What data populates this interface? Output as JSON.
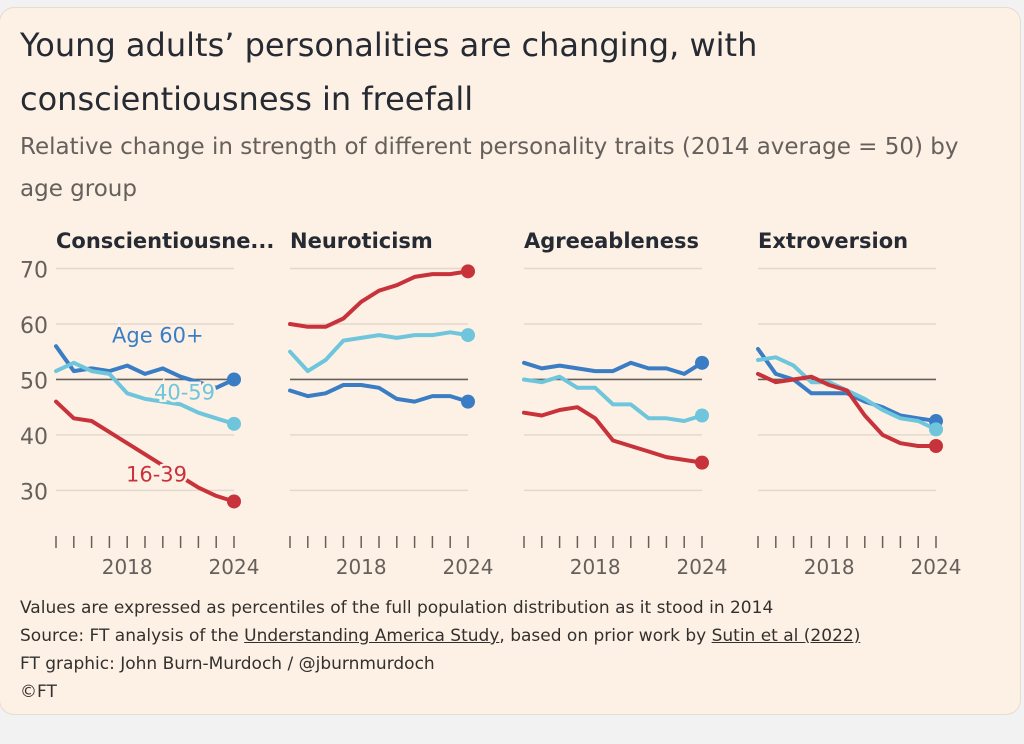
{
  "title": "Young adults’ personalities are changing, with conscientiousness in freefall",
  "subtitle": "Relative change in strength of different personality traits (2014 average = 50) by age group",
  "footer": {
    "note": "Values are expressed as percentiles of the full population distribution as it stood in 2014",
    "source_prefix": "Source: FT analysis of the ",
    "source_link1": "Understanding America Study",
    "source_middle": ", based on prior work by ",
    "source_link2": "Sutin et al (2022)",
    "credit": "FT graphic: John Burn-Murdoch / @jburnmurdoch",
    "copyright": "©FT"
  },
  "chart_data": {
    "type": "line",
    "x": [
      2014,
      2015,
      2016,
      2017,
      2018,
      2019,
      2020,
      2021,
      2022,
      2023,
      2024
    ],
    "x_tick_labels": [
      "2018",
      "2024"
    ],
    "x_tick_values": [
      2018,
      2024
    ],
    "ylim": [
      27,
      71
    ],
    "y_ticks": [
      30,
      40,
      50,
      60,
      70
    ],
    "reference_line": 50,
    "colors": {
      "Age 60+": "#3a7dc4",
      "40-59": "#6fc6dc",
      "16-39": "#c8323a"
    },
    "panels": [
      {
        "name": "Conscientiousne...",
        "series": [
          {
            "name": "Age 60+",
            "values": [
              56,
              51.5,
              52,
              51.5,
              52.5,
              51,
              52,
              50.5,
              49.5,
              48.5,
              50
            ],
            "label": "Age 60+"
          },
          {
            "name": "40-59",
            "values": [
              51.5,
              53,
              51.5,
              51,
              47.5,
              46.5,
              46,
              45.5,
              44,
              43,
              42
            ],
            "label": "40-59"
          },
          {
            "name": "16-39",
            "values": [
              46,
              43,
              42.5,
              40.5,
              38.5,
              36.5,
              34.5,
              32.5,
              30.5,
              29,
              28
            ],
            "label": "16-39"
          }
        ]
      },
      {
        "name": "Neuroticism",
        "series": [
          {
            "name": "Age 60+",
            "values": [
              48,
              47,
              47.5,
              49,
              49,
              48.5,
              46.5,
              46,
              47,
              47,
              46
            ]
          },
          {
            "name": "40-59",
            "values": [
              55,
              51.5,
              53.5,
              57,
              57.5,
              58,
              57.5,
              58,
              58,
              58.5,
              58
            ]
          },
          {
            "name": "16-39",
            "values": [
              60,
              59.5,
              59.5,
              61,
              64,
              66,
              67,
              68.5,
              69,
              69,
              69.5
            ]
          }
        ]
      },
      {
        "name": "Agreeableness",
        "series": [
          {
            "name": "Age 60+",
            "values": [
              53,
              52,
              52.5,
              52,
              51.5,
              51.5,
              53,
              52,
              52,
              51,
              53
            ]
          },
          {
            "name": "40-59",
            "values": [
              50,
              49.5,
              50.5,
              48.5,
              48.5,
              45.5,
              45.5,
              43,
              43,
              42.5,
              43.5
            ]
          },
          {
            "name": "16-39",
            "values": [
              44,
              43.5,
              44.5,
              45,
              43,
              39,
              38,
              37,
              36,
              35.5,
              35
            ]
          }
        ]
      },
      {
        "name": "Extroversion",
        "series": [
          {
            "name": "Age 60+",
            "values": [
              55.5,
              51,
              50,
              47.5,
              47.5,
              47.5,
              46,
              45,
              43.5,
              43,
              42.5
            ]
          },
          {
            "name": "40-59",
            "values": [
              53.5,
              54,
              52.5,
              49.5,
              49.5,
              48,
              46.5,
              44.5,
              43,
              42.5,
              41
            ]
          },
          {
            "name": "16-39",
            "values": [
              51,
              49.5,
              50,
              50.5,
              49,
              48,
              43.5,
              40,
              38.5,
              38,
              38
            ]
          }
        ]
      }
    ]
  }
}
